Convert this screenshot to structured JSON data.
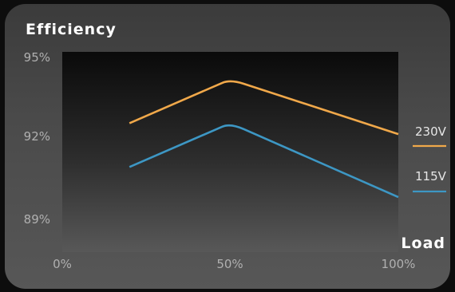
{
  "chart_data": {
    "type": "line",
    "title": "Efficiency",
    "xlabel": "Load",
    "ylabel": "",
    "xlim": [
      0,
      100
    ],
    "ylim": [
      89,
      95
    ],
    "x_ticks": [
      "0%",
      "50%",
      "100%"
    ],
    "y_ticks": [
      "95%",
      "92%",
      "89%"
    ],
    "legend_position": "right",
    "grid": false,
    "series": [
      {
        "name": "230V",
        "color": "#f0a84a",
        "x": [
          20,
          50,
          100
        ],
        "y": [
          92.6,
          94.2,
          92.2
        ]
      },
      {
        "name": "115V",
        "color": "#3d97c4",
        "x": [
          20,
          50,
          100
        ],
        "y": [
          91.0,
          92.6,
          89.9
        ]
      }
    ]
  }
}
